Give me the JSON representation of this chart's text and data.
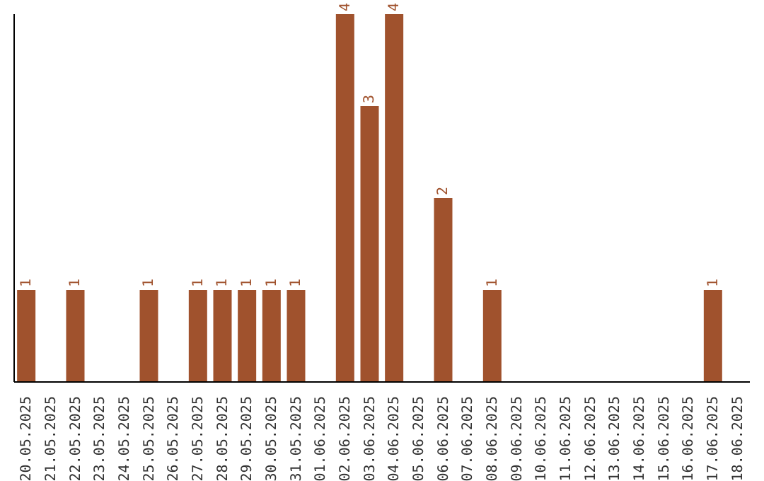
{
  "chart_data": {
    "type": "bar",
    "categories": [
      "20.05.2025",
      "21.05.2025",
      "22.05.2025",
      "23.05.2025",
      "24.05.2025",
      "25.05.2025",
      "26.05.2025",
      "27.05.2025",
      "28.05.2025",
      "29.05.2025",
      "30.05.2025",
      "31.05.2025",
      "01.06.2025",
      "02.06.2025",
      "03.06.2025",
      "04.06.2025",
      "05.06.2025",
      "06.06.2025",
      "07.06.2025",
      "08.06.2025",
      "09.06.2025",
      "10.06.2025",
      "11.06.2025",
      "12.06.2025",
      "13.06.2025",
      "14.06.2025",
      "15.06.2025",
      "16.06.2025",
      "17.06.2025",
      "18.06.2025"
    ],
    "values": [
      1,
      0,
      1,
      0,
      0,
      1,
      0,
      1,
      1,
      1,
      1,
      1,
      0,
      4,
      3,
      4,
      0,
      2,
      0,
      1,
      0,
      0,
      0,
      0,
      0,
      0,
      0,
      0,
      1,
      0
    ],
    "value_labels": [
      "1",
      null,
      "1",
      null,
      null,
      "1",
      null,
      "1",
      "1",
      "1",
      "1",
      "1",
      null,
      "4",
      "3",
      "4",
      null,
      "2",
      null,
      "1",
      null,
      null,
      null,
      null,
      null,
      null,
      null,
      null,
      "1",
      null
    ],
    "color": "#a0522d",
    "tick_labels": "x",
    "grid": false,
    "legend": false
  }
}
